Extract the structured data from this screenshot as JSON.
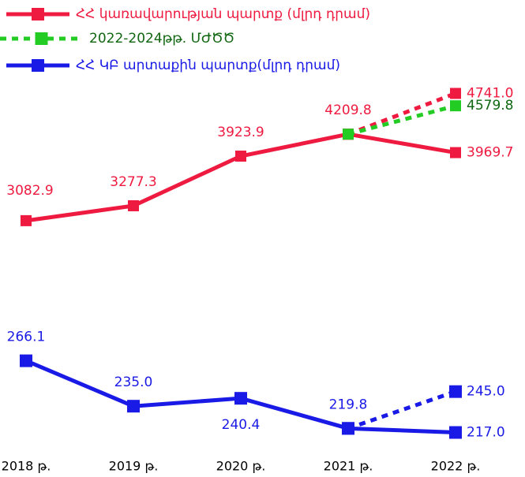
{
  "chart_data": {
    "type": "line",
    "categories": [
      "2018 թ.",
      "2019 թ.",
      "2020 թ.",
      "2021 թ.",
      "2022 թ."
    ],
    "ylim": [
      0,
      5650
    ],
    "y2lim": [
      200,
      497
    ],
    "series": [
      {
        "name": "ՀՀ կառավարության պարտք (մլրդ դրամ)",
        "color": "#ee1a40",
        "values": [
          3082.9,
          3277.3,
          3923.9,
          4209.8,
          3969.7
        ],
        "value_labels": [
          "3082.9",
          "3277.3",
          "3923.9",
          "4209.8",
          "3969.7"
        ]
      },
      {
        "color": "#ee1a40",
        "dashed": true,
        "values": [
          null,
          null,
          null,
          4209.8,
          4741.0
        ],
        "value_labels": [
          null,
          null,
          null,
          null,
          "4741.0"
        ]
      },
      {
        "name": "2022-2024թթ. ՄԺԾԾ",
        "color": "#22cc22",
        "dashed": true,
        "values": [
          null,
          null,
          null,
          4209.8,
          4579.8
        ],
        "value_labels": [
          null,
          null,
          null,
          null,
          "4579.8"
        ]
      },
      {
        "name": "ՀՀ ԿԲ արտաքին պարտք(մլրդ դրամ)",
        "color": "#1a1ae6",
        "axis": "y2",
        "values": [
          266.1,
          235.0,
          240.4,
          219.8,
          217.0
        ],
        "value_labels": [
          "266.1",
          "235.0",
          "240.4",
          "219.8",
          "217.0"
        ]
      },
      {
        "color": "#1a1ae6",
        "dashed": true,
        "axis": "y2",
        "values": [
          null,
          null,
          null,
          219.8,
          245.0
        ],
        "value_labels": [
          null,
          null,
          null,
          null,
          "245.0"
        ]
      }
    ]
  }
}
